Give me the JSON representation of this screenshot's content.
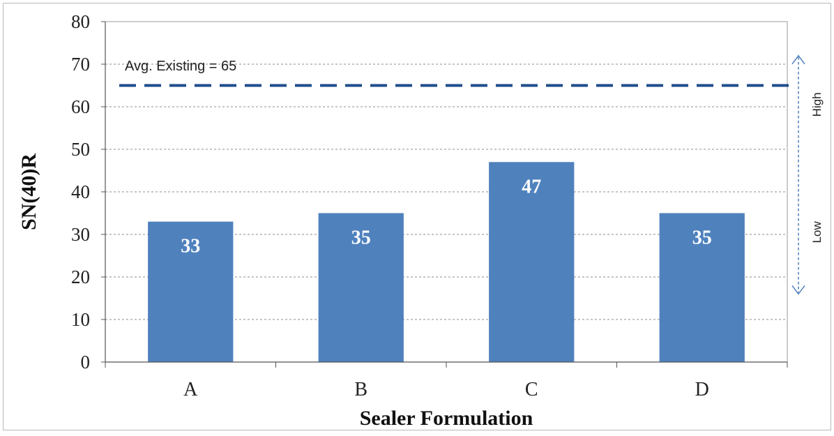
{
  "chart_data": {
    "type": "bar",
    "title": "",
    "xlabel": "Sealer Formulation",
    "ylabel": "SN(40)R",
    "ylim": [
      0,
      80
    ],
    "yticks": [
      0,
      10,
      20,
      30,
      40,
      50,
      60,
      70,
      80
    ],
    "grid": true,
    "categories": [
      "A",
      "B",
      "C",
      "D"
    ],
    "values": [
      33,
      35,
      47,
      35
    ],
    "data_labels": [
      "33",
      "35",
      "47",
      "35"
    ],
    "bar_color": "#4f81bd",
    "reference_line": {
      "value": 65,
      "label": "Avg. Existing = 65",
      "style": "dashed",
      "color": "#1f4e8c"
    },
    "side_scale": {
      "high_label": "High",
      "low_label": "Low",
      "color": "#4f81bd"
    }
  }
}
